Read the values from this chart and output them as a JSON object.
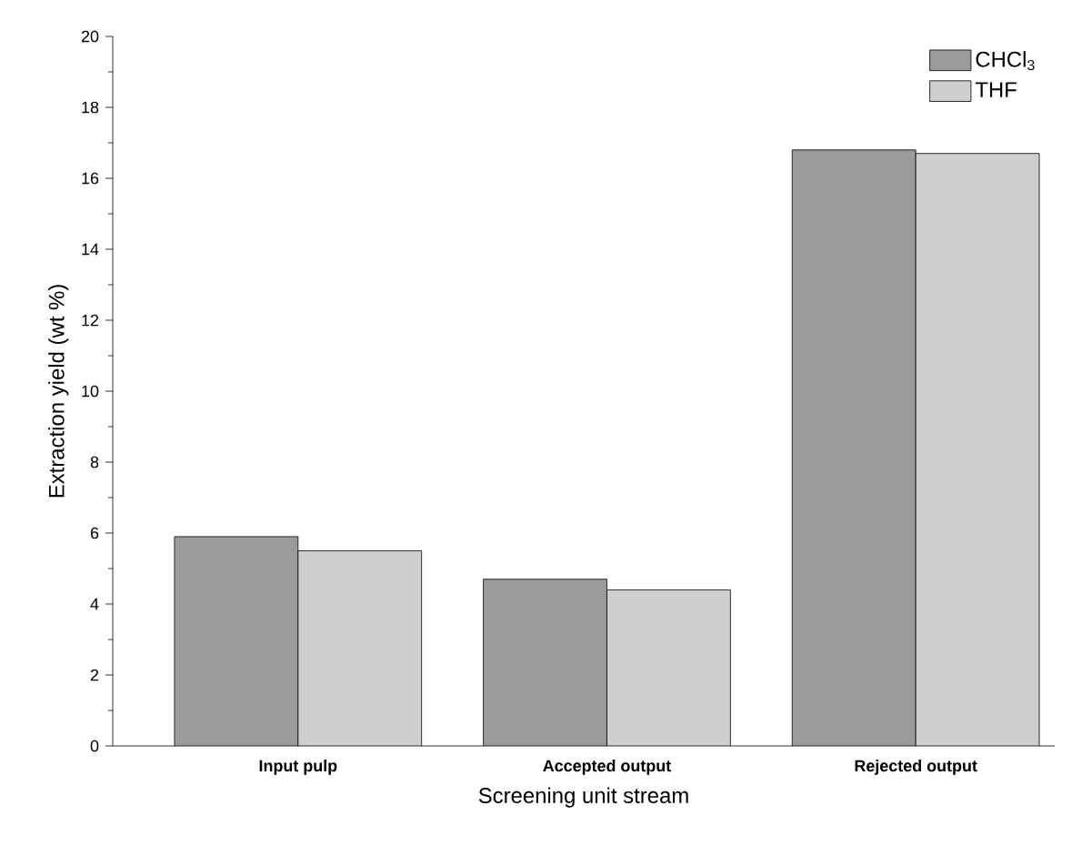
{
  "chart_data": {
    "type": "bar",
    "xlabel": "Screening unit stream",
    "ylabel": "Extraction yield (wt %)",
    "categories": [
      "Input pulp",
      "Accepted output",
      "Rejected output"
    ],
    "series": [
      {
        "name": "CHCl$_{3}$",
        "color": "#9a9a9a",
        "values": [
          5.9,
          4.7,
          16.8
        ]
      },
      {
        "name": "THF",
        "color": "#cfcfcf",
        "values": [
          5.5,
          4.4,
          16.7
        ]
      }
    ],
    "ylim": [
      0,
      20
    ],
    "yticks": [
      0,
      2,
      4,
      6,
      8,
      10,
      12,
      14,
      16,
      18,
      20
    ],
    "grid": false,
    "legend": "top right"
  }
}
